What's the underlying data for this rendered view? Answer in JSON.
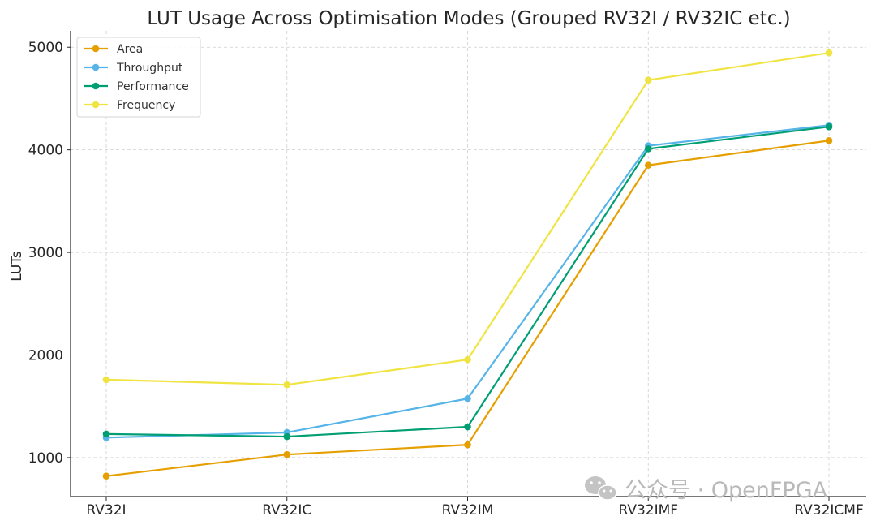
{
  "chart_data": {
    "type": "line",
    "title": "LUT Usage Across Optimisation Modes (Grouped RV32I / RV32IC etc.)",
    "xlabel": "",
    "ylabel": "LUTs",
    "categories": [
      "RV32I",
      "RV32IC",
      "RV32IM",
      "RV32IMF",
      "RV32ICMF"
    ],
    "ylim": [
      620,
      5160
    ],
    "yticks": [
      1000,
      2000,
      3000,
      4000,
      5000
    ],
    "grid": true,
    "legend_position": "top-left",
    "series": [
      {
        "name": "Area",
        "color": "#E69F00",
        "values": [
          820,
          1030,
          1125,
          3850,
          4090
        ]
      },
      {
        "name": "Throughput",
        "color": "#56B4E9",
        "values": [
          1195,
          1245,
          1575,
          4040,
          4240
        ]
      },
      {
        "name": "Performance",
        "color": "#009E73",
        "values": [
          1230,
          1205,
          1300,
          4010,
          4225
        ]
      },
      {
        "name": "Frequency",
        "color": "#F0E442",
        "values": [
          1760,
          1710,
          1955,
          4680,
          4945
        ]
      }
    ]
  },
  "watermark": {
    "text": "公众号 · OpenFPGA",
    "icon": "wechat-icon"
  }
}
